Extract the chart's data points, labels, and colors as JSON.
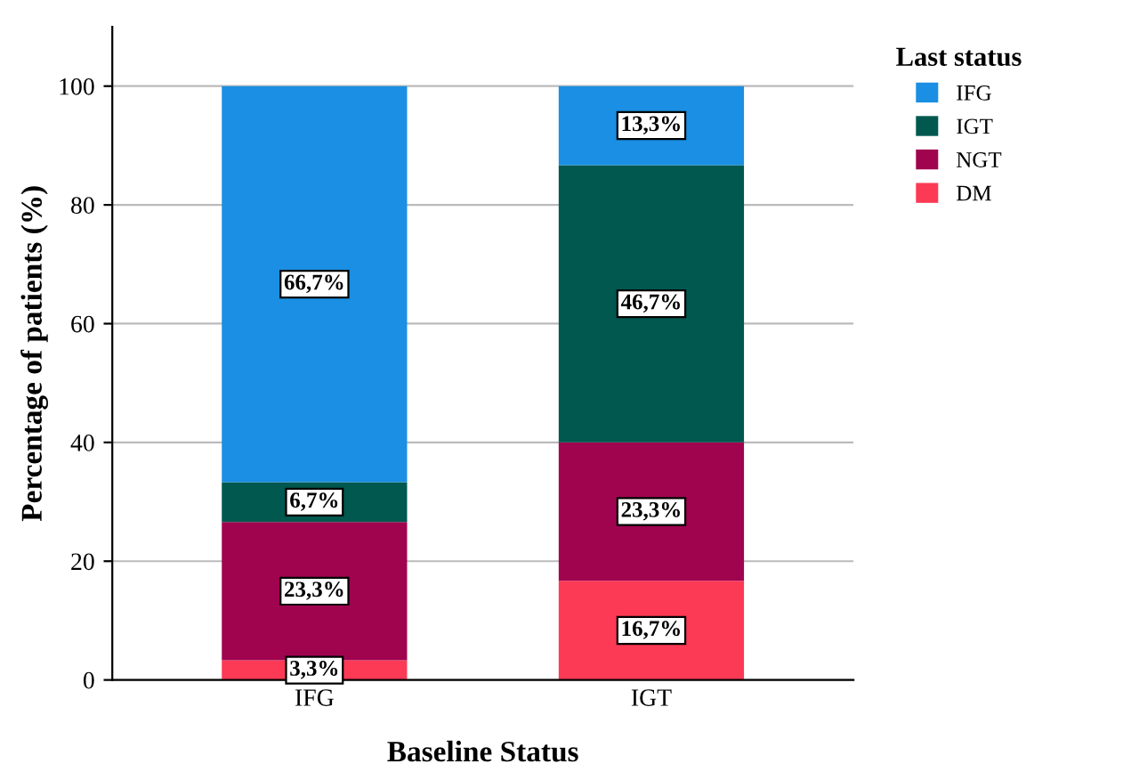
{
  "chart_data": {
    "type": "bar",
    "stacked": true,
    "categories": [
      "IFG",
      "IGT"
    ],
    "xlabel": "Baseline Status",
    "ylabel": "Percentage of patients (%)",
    "legend_title": "Last status",
    "legend": "right",
    "grid": "y",
    "ylim": [
      0,
      110
    ],
    "yticks": [
      0,
      20,
      40,
      60,
      80,
      100
    ],
    "series": [
      {
        "name": "DM",
        "color": "#fc3a55",
        "values": [
          3.3,
          16.7
        ],
        "value_labels": [
          "3,3%",
          "16,7%"
        ]
      },
      {
        "name": "NGT",
        "color": "#a0044f",
        "values": [
          23.3,
          23.3
        ],
        "value_labels": [
          "23,3%",
          "23,3%"
        ]
      },
      {
        "name": "IGT",
        "color": "#00584f",
        "values": [
          6.7,
          46.7
        ],
        "value_labels": [
          "6,7%",
          "46,7%"
        ]
      },
      {
        "name": "IFG",
        "color": "#1a8fe3",
        "values": [
          66.7,
          13.3
        ],
        "value_labels": [
          "66,7%",
          "13,3%"
        ]
      }
    ]
  }
}
